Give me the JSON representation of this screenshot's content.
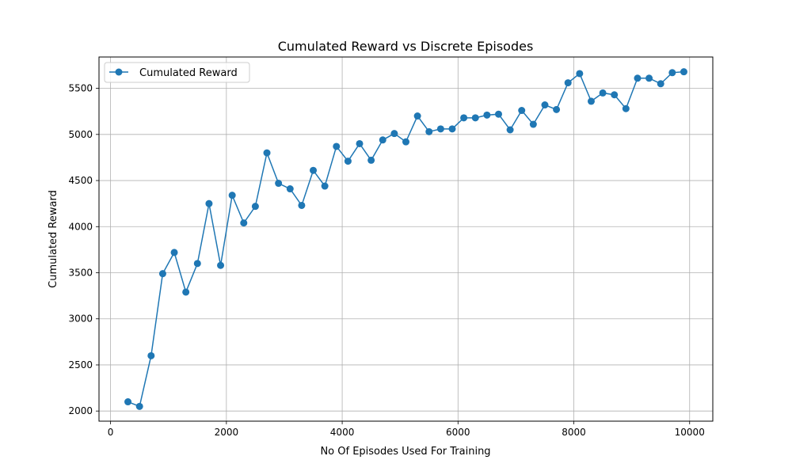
{
  "chart_data": {
    "type": "line",
    "title": "Cumulated Reward vs Discrete Episodes",
    "xlabel": "No Of Episodes Used For Training",
    "ylabel": "Cumulated Reward",
    "xlim": [
      -200,
      10400
    ],
    "ylim": [
      1890,
      5840
    ],
    "xticks": [
      0,
      2000,
      4000,
      6000,
      8000,
      10000
    ],
    "yticks": [
      2000,
      2500,
      3000,
      3500,
      4000,
      4500,
      5000,
      5500
    ],
    "grid": true,
    "legend_position": "top-left",
    "color": "#1f77b4",
    "series": [
      {
        "name": "Cumulated Reward",
        "x": [
          300,
          500,
          700,
          900,
          1100,
          1300,
          1500,
          1700,
          1900,
          2100,
          2300,
          2500,
          2700,
          2900,
          3100,
          3300,
          3500,
          3700,
          3900,
          4100,
          4300,
          4500,
          4700,
          4900,
          5100,
          5300,
          5500,
          5700,
          5900,
          6100,
          6300,
          6500,
          6700,
          6900,
          7100,
          7300,
          7500,
          7700,
          7900,
          8100,
          8300,
          8500,
          8700,
          8900,
          9100,
          9300,
          9500,
          9700,
          9900
        ],
        "y": [
          2100,
          2050,
          2600,
          3490,
          3720,
          3290,
          3600,
          4250,
          3580,
          4340,
          4040,
          4220,
          4800,
          4470,
          4410,
          4230,
          4610,
          4440,
          4870,
          4710,
          4900,
          4720,
          4940,
          5010,
          4920,
          5200,
          5030,
          5060,
          5060,
          5180,
          5180,
          5210,
          5220,
          5050,
          5260,
          5110,
          5320,
          5270,
          5560,
          5660,
          5360,
          5450,
          5430,
          5280,
          5610,
          5610,
          5550,
          5670,
          5680
        ]
      }
    ]
  }
}
